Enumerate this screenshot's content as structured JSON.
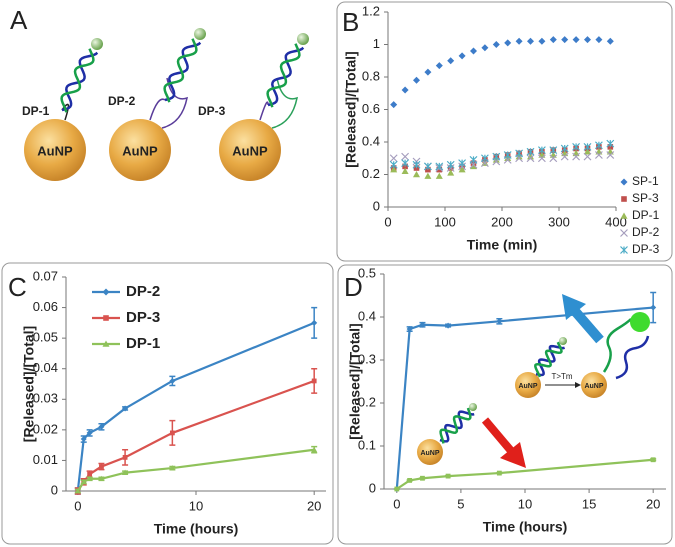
{
  "diagram": {
    "label": "A",
    "items": [
      {
        "name": "DP-1",
        "particle": "AuNP"
      },
      {
        "name": "DP-2",
        "particle": "AuNP"
      },
      {
        "name": "DP-3",
        "particle": "AuNP"
      }
    ]
  },
  "chart_data": [
    {
      "type": "scatter",
      "panel_label": "B",
      "x_label": "Time (min)",
      "y_label": "[Released]/[Total]",
      "x": [
        10,
        30,
        50,
        70,
        90,
        110,
        130,
        150,
        170,
        190,
        210,
        230,
        250,
        270,
        290,
        310,
        330,
        350,
        370,
        390
      ],
      "series": [
        {
          "name": "SP-1",
          "color": "#3d7cc9",
          "marker": "diamond",
          "values": [
            0.63,
            0.72,
            0.78,
            0.83,
            0.87,
            0.9,
            0.93,
            0.96,
            0.98,
            1.0,
            1.01,
            1.02,
            1.02,
            1.02,
            1.03,
            1.03,
            1.03,
            1.03,
            1.03,
            1.02
          ]
        },
        {
          "name": "SP-3",
          "color": "#c0504d",
          "marker": "square",
          "values": [
            0.24,
            0.25,
            0.24,
            0.23,
            0.23,
            0.24,
            0.25,
            0.27,
            0.29,
            0.31,
            0.32,
            0.33,
            0.34,
            0.34,
            0.35,
            0.35,
            0.36,
            0.36,
            0.37,
            0.37
          ]
        },
        {
          "name": "DP-1",
          "color": "#9bbb59",
          "marker": "triangle",
          "values": [
            0.23,
            0.22,
            0.2,
            0.19,
            0.19,
            0.21,
            0.23,
            0.25,
            0.27,
            0.29,
            0.3,
            0.31,
            0.31,
            0.32,
            0.32,
            0.33,
            0.33,
            0.34,
            0.34,
            0.34
          ]
        },
        {
          "name": "DP-2",
          "color": "#a59dbd",
          "marker": "x",
          "values": [
            0.3,
            0.31,
            0.28,
            0.25,
            0.24,
            0.24,
            0.25,
            0.26,
            0.27,
            0.28,
            0.29,
            0.3,
            0.3,
            0.3,
            0.3,
            0.31,
            0.31,
            0.31,
            0.32,
            0.32
          ]
        },
        {
          "name": "DP-3",
          "color": "#4bacc6",
          "marker": "star",
          "values": [
            0.26,
            0.27,
            0.26,
            0.25,
            0.25,
            0.26,
            0.27,
            0.29,
            0.3,
            0.31,
            0.32,
            0.33,
            0.34,
            0.35,
            0.35,
            0.36,
            0.37,
            0.37,
            0.38,
            0.39
          ]
        }
      ],
      "xlim": [
        0,
        400
      ],
      "xticks": [
        0,
        100,
        200,
        300,
        400
      ],
      "ylim": [
        0,
        1.2
      ],
      "yticks": [
        0,
        0.2,
        0.4,
        0.6,
        0.8,
        1,
        1.2
      ],
      "legend": "right"
    },
    {
      "type": "line",
      "panel_label": "C",
      "x_label": "Time (hours)",
      "y_label": "[Released]/[Total]",
      "x": [
        0,
        0.5,
        1,
        2,
        4,
        8,
        20
      ],
      "series": [
        {
          "name": "DP-2",
          "color": "#3b84c4",
          "marker": "diamond",
          "values": [
            0,
            0.017,
            0.019,
            0.021,
            0.027,
            0.036,
            0.055
          ],
          "errors": [
            0.001,
            0.001,
            0.001,
            0.001,
            0.0005,
            0.0015,
            0.005
          ]
        },
        {
          "name": "DP-3",
          "color": "#d9534f",
          "marker": "square",
          "values": [
            0,
            0.003,
            0.0055,
            0.008,
            0.011,
            0.019,
            0.036
          ],
          "errors": [
            0.001,
            0.001,
            0.001,
            0.001,
            0.0025,
            0.004,
            0.004
          ]
        },
        {
          "name": "DP-1",
          "color": "#8fc25a",
          "marker": "triangle",
          "values": [
            0,
            0.003,
            0.004,
            0.004,
            0.006,
            0.0075,
            0.0135
          ],
          "errors": [
            0.0005,
            0.0005,
            0.0005,
            0.0005,
            0.0005,
            0.0005,
            0.001
          ]
        }
      ],
      "xlim": [
        -1,
        21
      ],
      "xticks": [
        0,
        10,
        20
      ],
      "ylim": [
        0,
        0.07
      ],
      "yticks": [
        0,
        0.01,
        0.02,
        0.03,
        0.04,
        0.05,
        0.06,
        0.07
      ],
      "legend": "upper left"
    },
    {
      "type": "line",
      "panel_label": "D",
      "x_label": "Time (hours)",
      "y_label": "[Released]/[Total]",
      "x": [
        0,
        1,
        2,
        4,
        8,
        20
      ],
      "series": [
        {
          "color": "#3b84c4",
          "marker": "diamond",
          "values": [
            0,
            0.372,
            0.382,
            0.38,
            0.39,
            0.422
          ],
          "errors": [
            0,
            0.005,
            0.005,
            0.003,
            0.006,
            0.035
          ]
        },
        {
          "color": "#8fc25a",
          "marker": "square",
          "values": [
            0,
            0.02,
            0.025,
            0.03,
            0.037,
            0.068
          ],
          "errors": [
            0,
            0.001,
            0.001,
            0.001,
            0.001,
            0.002
          ]
        }
      ],
      "xlim": [
        -1,
        21
      ],
      "xticks": [
        0,
        5,
        10,
        15,
        20
      ],
      "ylim": [
        0,
        0.5
      ],
      "yticks": [
        0,
        0.1,
        0.2,
        0.3,
        0.4,
        0.5
      ],
      "annotations": [
        "AuNP",
        "T>Tm",
        "AuNP",
        "AuNP"
      ]
    }
  ]
}
